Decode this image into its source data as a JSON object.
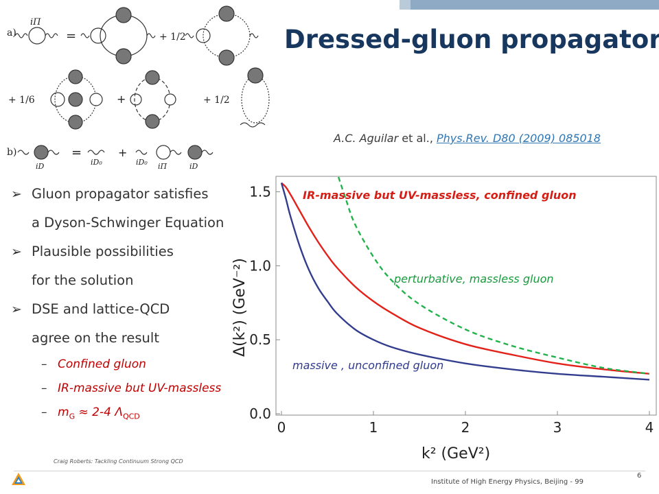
{
  "slide": {
    "title": "Dressed-gluon propagator",
    "citation_authors": "A.C. Aguilar",
    "citation_etal": " et al., ",
    "citation_link": "Phys.Rev. D80 (2009) 085018",
    "footer_left": "Craig Roberts: Tackling Continuum Strong QCD",
    "footer_center": "Institute of High Energy Physics, Beijing - 99",
    "page_number": "6"
  },
  "bullets": [
    {
      "line1": "Gluon propagator satisfies",
      "line2": "a Dyson-Schwinger Equation"
    },
    {
      "line1": "Plausible possibilities",
      "line2": "for the solution"
    },
    {
      "line1": "DSE and lattice-QCD",
      "line2": "agree on the result"
    }
  ],
  "sub_bullets": {
    "item1": "Confined gluon",
    "item2": "IR-massive but UV-massless",
    "item3_prefix": "m",
    "item3_sub": "G",
    "item3_mid": " ≈ 2-4 Λ",
    "item3_sub2": "QCD"
  },
  "diagram_labels": {
    "row_a": "a)",
    "row_b": "b)",
    "lhs_a": "iΠ",
    "equals": "=",
    "plus_half": "+ 1/2",
    "plus_sixth": "+ 1/6",
    "plus": "+",
    "lhs_b": "iD",
    "d0": "iD₀",
    "ipi": "iΠ",
    "id": "iD"
  },
  "chart_data": {
    "type": "line",
    "xlabel": "k² (GeV²)",
    "ylabel": "Δ(k²) (GeV⁻²)",
    "xlim": [
      0,
      4
    ],
    "ylim": [
      0,
      1.6
    ],
    "x_ticks": [
      "0",
      "1",
      "2",
      "3",
      "4"
    ],
    "y_ticks": [
      "0.0",
      "0.5",
      "1.0",
      "1.5"
    ],
    "grid": false,
    "series": [
      {
        "name": "IR-massive but UV-massless, confined gluon",
        "color": "#e32119",
        "style": "solid",
        "points": [
          [
            0,
            1.56
          ],
          [
            0.05,
            1.53
          ],
          [
            0.1,
            1.48
          ],
          [
            0.2,
            1.37
          ],
          [
            0.3,
            1.26
          ],
          [
            0.4,
            1.16
          ],
          [
            0.5,
            1.07
          ],
          [
            0.6,
            0.99
          ],
          [
            0.8,
            0.86
          ],
          [
            1.0,
            0.76
          ],
          [
            1.2,
            0.68
          ],
          [
            1.5,
            0.58
          ],
          [
            2.0,
            0.47
          ],
          [
            2.5,
            0.4
          ],
          [
            3.0,
            0.34
          ],
          [
            3.5,
            0.3
          ],
          [
            4.0,
            0.27
          ]
        ]
      },
      {
        "name": "perturbative, massless gluon",
        "color": "#21b24b",
        "style": "dashed",
        "points": [
          [
            0.62,
            1.6
          ],
          [
            0.7,
            1.45
          ],
          [
            0.8,
            1.28
          ],
          [
            1.0,
            1.06
          ],
          [
            1.2,
            0.9
          ],
          [
            1.5,
            0.74
          ],
          [
            2.0,
            0.57
          ],
          [
            2.5,
            0.46
          ],
          [
            3.0,
            0.38
          ],
          [
            3.5,
            0.31
          ],
          [
            4.0,
            0.27
          ]
        ]
      },
      {
        "name": "massive , unconfined gluon",
        "color": "#333d8e",
        "style": "solid",
        "points": [
          [
            0,
            1.56
          ],
          [
            0.05,
            1.45
          ],
          [
            0.1,
            1.33
          ],
          [
            0.2,
            1.13
          ],
          [
            0.3,
            0.97
          ],
          [
            0.4,
            0.85
          ],
          [
            0.5,
            0.76
          ],
          [
            0.6,
            0.68
          ],
          [
            0.8,
            0.57
          ],
          [
            1.0,
            0.5
          ],
          [
            1.2,
            0.45
          ],
          [
            1.5,
            0.4
          ],
          [
            2.0,
            0.34
          ],
          [
            2.5,
            0.3
          ],
          [
            3.0,
            0.27
          ],
          [
            3.5,
            0.25
          ],
          [
            4.0,
            0.23
          ]
        ]
      }
    ]
  }
}
